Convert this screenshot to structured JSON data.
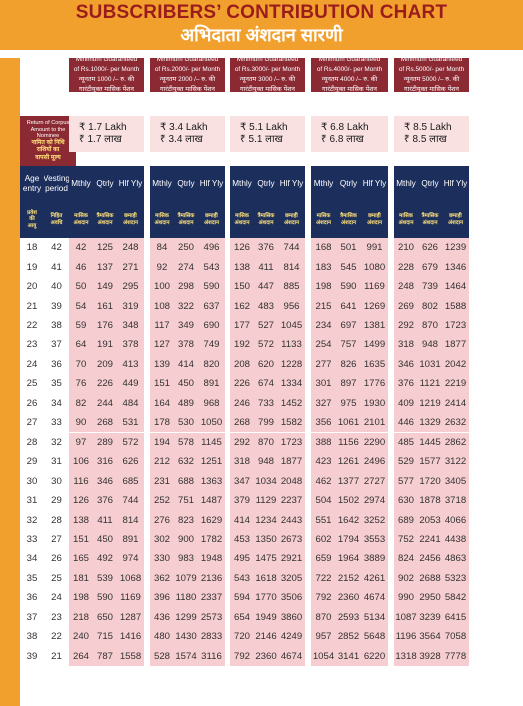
{
  "title_en": "SUBSCRIBERS’ CONTRIBUTION CHART",
  "title_hi": "अभिदाता अंशदान सारणी",
  "plans": [
    {
      "line1": "Minimum Guaranteed",
      "line2": "of Rs.1000/- per Month",
      "line3": "न्यूनतम 1000 /– रु. की",
      "line4": "गारंटीयुक्त मासिक पेंशन",
      "corpus_en": "₹ 1.7 Lakh",
      "corpus_hi": "₹ 1.7 लाख"
    },
    {
      "line1": "Minimum Guaranteed",
      "line2": "of Rs.2000/- per Month",
      "line3": "न्यूनतम 2000 /– रु. की",
      "line4": "गारंटीयुक्त मासिक पेंशन",
      "corpus_en": "₹ 3.4 Lakh",
      "corpus_hi": "₹ 3.4 लाख"
    },
    {
      "line1": "Minimum Guaranteed",
      "line2": "of Rs.3000/- per Month",
      "line3": "न्यूनतम 3000 /– रु. की",
      "line4": "गारंटीयुक्त मासिक पेंशन",
      "corpus_en": "₹ 5.1 Lakh",
      "corpus_hi": "₹ 5.1 लाख"
    },
    {
      "line1": "Minimum Guaranteed",
      "line2": "of Rs.4000/- per Month",
      "line3": "न्यूनतम 4000 /– रु. की",
      "line4": "गारंटीयुक्त मासिक पेंशन",
      "corpus_en": "₹ 6.8 Lakh",
      "corpus_hi": "₹ 6.8 लाख"
    },
    {
      "line1": "Minimum Guaranteed",
      "line2": "of Rs.5000/- per Month",
      "line3": "न्यूनतम 5000 /– रु. की",
      "line4": "गारंटीयुक्त मासिक पेंशन",
      "corpus_en": "₹ 8.5 Lakh",
      "corpus_hi": "₹ 8.5 लाख"
    }
  ],
  "corpus_label_en": [
    "Return of Corpus",
    "Amount to the Nominee"
  ],
  "corpus_label_hi": [
    "नामित को निधि",
    "राशियों का",
    "वापसी मूल्य"
  ],
  "col_age": {
    "en": [
      "Age",
      "entry"
    ],
    "hi": [
      "प्रवेश",
      "की",
      "आयु"
    ]
  },
  "col_vesting": {
    "en": [
      "Vesting",
      "period"
    ],
    "hi": [
      "निहित",
      "अवधि"
    ]
  },
  "freq_en": [
    "Mthly",
    "Qtrly",
    "Hlf Yly"
  ],
  "freq_hi": [
    [
      "मासिक",
      "अंशदान"
    ],
    [
      "त्रैमासिक",
      "अंशदान"
    ],
    [
      "छमाही",
      "अंशदान"
    ]
  ],
  "rows": [
    [
      18,
      42,
      42,
      125,
      248,
      84,
      250,
      496,
      126,
      376,
      744,
      168,
      501,
      991,
      210,
      626,
      1239
    ],
    [
      19,
      41,
      46,
      137,
      271,
      92,
      274,
      543,
      138,
      411,
      814,
      183,
      545,
      1080,
      228,
      679,
      1346
    ],
    [
      20,
      40,
      50,
      149,
      295,
      100,
      298,
      590,
      150,
      447,
      885,
      198,
      590,
      1169,
      248,
      739,
      1464
    ],
    [
      21,
      39,
      54,
      161,
      319,
      108,
      322,
      637,
      162,
      483,
      956,
      215,
      641,
      1269,
      269,
      802,
      1588
    ],
    [
      22,
      38,
      59,
      176,
      348,
      117,
      349,
      690,
      177,
      527,
      1045,
      234,
      697,
      1381,
      292,
      870,
      1723
    ],
    [
      23,
      37,
      64,
      191,
      378,
      127,
      378,
      749,
      192,
      572,
      1133,
      254,
      757,
      1499,
      318,
      948,
      1877
    ],
    [
      24,
      36,
      70,
      209,
      413,
      139,
      414,
      820,
      208,
      620,
      1228,
      277,
      826,
      1635,
      346,
      1031,
      2042
    ],
    [
      25,
      35,
      76,
      226,
      449,
      151,
      450,
      891,
      226,
      674,
      1334,
      301,
      897,
      1776,
      376,
      1121,
      2219
    ],
    [
      26,
      34,
      82,
      244,
      484,
      164,
      489,
      968,
      246,
      733,
      1452,
      327,
      975,
      1930,
      409,
      1219,
      2414
    ],
    [
      27,
      33,
      90,
      268,
      531,
      178,
      530,
      1050,
      268,
      799,
      1582,
      356,
      1061,
      2101,
      446,
      1329,
      2632
    ],
    [
      28,
      32,
      97,
      289,
      572,
      194,
      578,
      1145,
      292,
      870,
      1723,
      388,
      1156,
      2290,
      485,
      1445,
      2862
    ],
    [
      29,
      31,
      106,
      316,
      626,
      212,
      632,
      1251,
      318,
      948,
      1877,
      423,
      1261,
      2496,
      529,
      1577,
      3122
    ],
    [
      30,
      30,
      116,
      346,
      685,
      231,
      688,
      1363,
      347,
      1034,
      2048,
      462,
      1377,
      2727,
      577,
      1720,
      3405
    ],
    [
      31,
      29,
      126,
      376,
      744,
      252,
      751,
      1487,
      379,
      1129,
      2237,
      504,
      1502,
      2974,
      630,
      1878,
      3718
    ],
    [
      32,
      28,
      138,
      411,
      814,
      276,
      823,
      1629,
      414,
      1234,
      2443,
      551,
      1642,
      3252,
      689,
      2053,
      4066
    ],
    [
      33,
      27,
      151,
      450,
      891,
      302,
      900,
      1782,
      453,
      1350,
      2673,
      602,
      1794,
      3553,
      752,
      2241,
      4438
    ],
    [
      34,
      26,
      165,
      492,
      974,
      330,
      983,
      1948,
      495,
      1475,
      2921,
      659,
      1964,
      3889,
      824,
      2456,
      4863
    ],
    [
      35,
      25,
      181,
      539,
      1068,
      362,
      1079,
      2136,
      543,
      1618,
      3205,
      722,
      2152,
      4261,
      902,
      2688,
      5323
    ],
    [
      36,
      24,
      198,
      590,
      1169,
      396,
      1180,
      2337,
      594,
      1770,
      3506,
      792,
      2360,
      4674,
      990,
      2950,
      5842
    ],
    [
      37,
      23,
      218,
      650,
      1287,
      436,
      1299,
      2573,
      654,
      1949,
      3860,
      870,
      2593,
      5134,
      1087,
      3239,
      6415
    ],
    [
      38,
      22,
      240,
      715,
      1416,
      480,
      1430,
      2833,
      720,
      2146,
      4249,
      957,
      2852,
      5648,
      1196,
      3564,
      7058
    ],
    [
      39,
      21,
      264,
      787,
      1558,
      528,
      1574,
      3116,
      792,
      2360,
      4674,
      1054,
      3141,
      6220,
      1318,
      3928,
      7778
    ]
  ]
}
